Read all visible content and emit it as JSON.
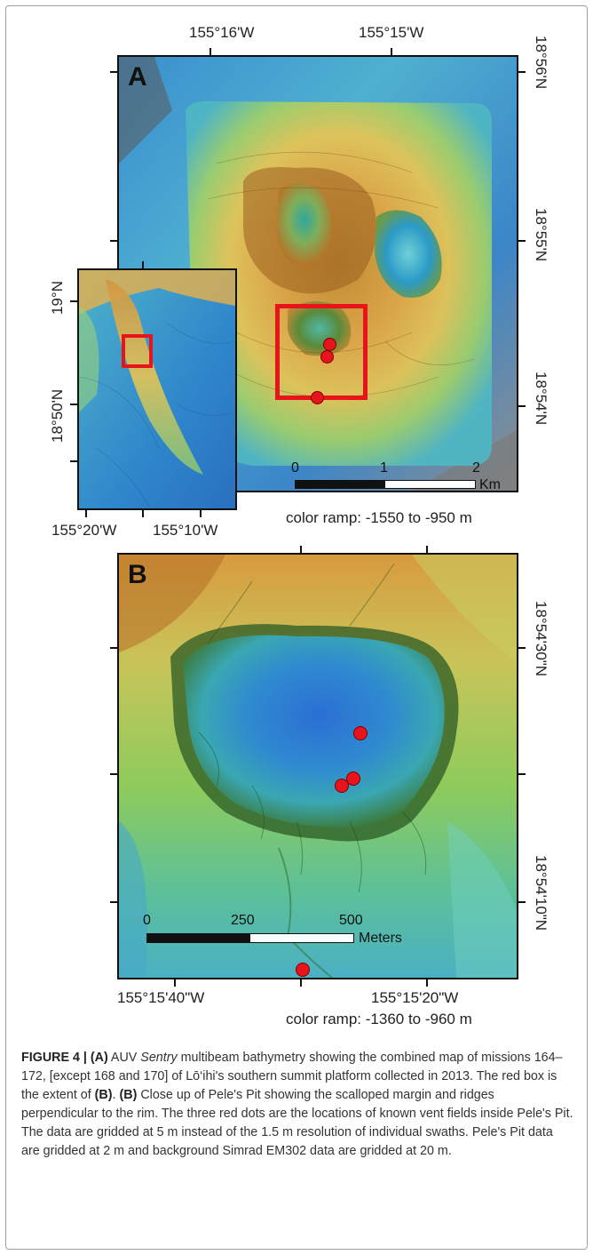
{
  "panel_a": {
    "label": "A",
    "top_ticks": [
      "155°16'W",
      "155°15'W"
    ],
    "right_ticks": [
      "18°56'N",
      "18°55'N",
      "18°54'N"
    ],
    "scale_numbers": [
      "0",
      "1",
      "2"
    ],
    "scale_unit": "Km",
    "color_ramp": "color ramp: -1550 to -950 m"
  },
  "inset": {
    "left_ticks": [
      "19°N",
      "18°50'N"
    ],
    "bottom_ticks": [
      "155°20'W",
      "155°10'W"
    ]
  },
  "panel_b": {
    "label": "B",
    "right_ticks": [
      "18°54'30\"N",
      "18°54'10\"N"
    ],
    "bottom_ticks": [
      "155°15'40\"W",
      "155°15'20\"W"
    ],
    "scale_numbers": [
      "0",
      "250",
      "500"
    ],
    "scale_unit": "Meters",
    "color_ramp": "color ramp: -1360 to -960 m"
  },
  "caption": {
    "label": "FIGURE 4 | (A)",
    "p1": " AUV ",
    "sentry": "Sentry",
    "p2": " multibeam bathymetry showing the combined map of missions 164–172, [except 168 and 170] of Lō‘ihi's southern summit platform collected in 2013. The red box is the extent of ",
    "ref_b": "(B)",
    "p3": ". ",
    "label_b": "(B)",
    "p4": " Close up of Pele's Pit showing the scalloped margin and ridges perpendicular to the rim. The three red dots are the locations of known vent fields inside Pele's Pit. The data are gridded at 5 m instead of the 1.5 m resolution of individual swaths. Pele's Pit data are gridded at 2 m and background Simrad EM302 data are gridded at 20 m."
  },
  "colors": {
    "vent_dot": "#e8141b",
    "box": "#e8141b",
    "frame": "#111111"
  }
}
